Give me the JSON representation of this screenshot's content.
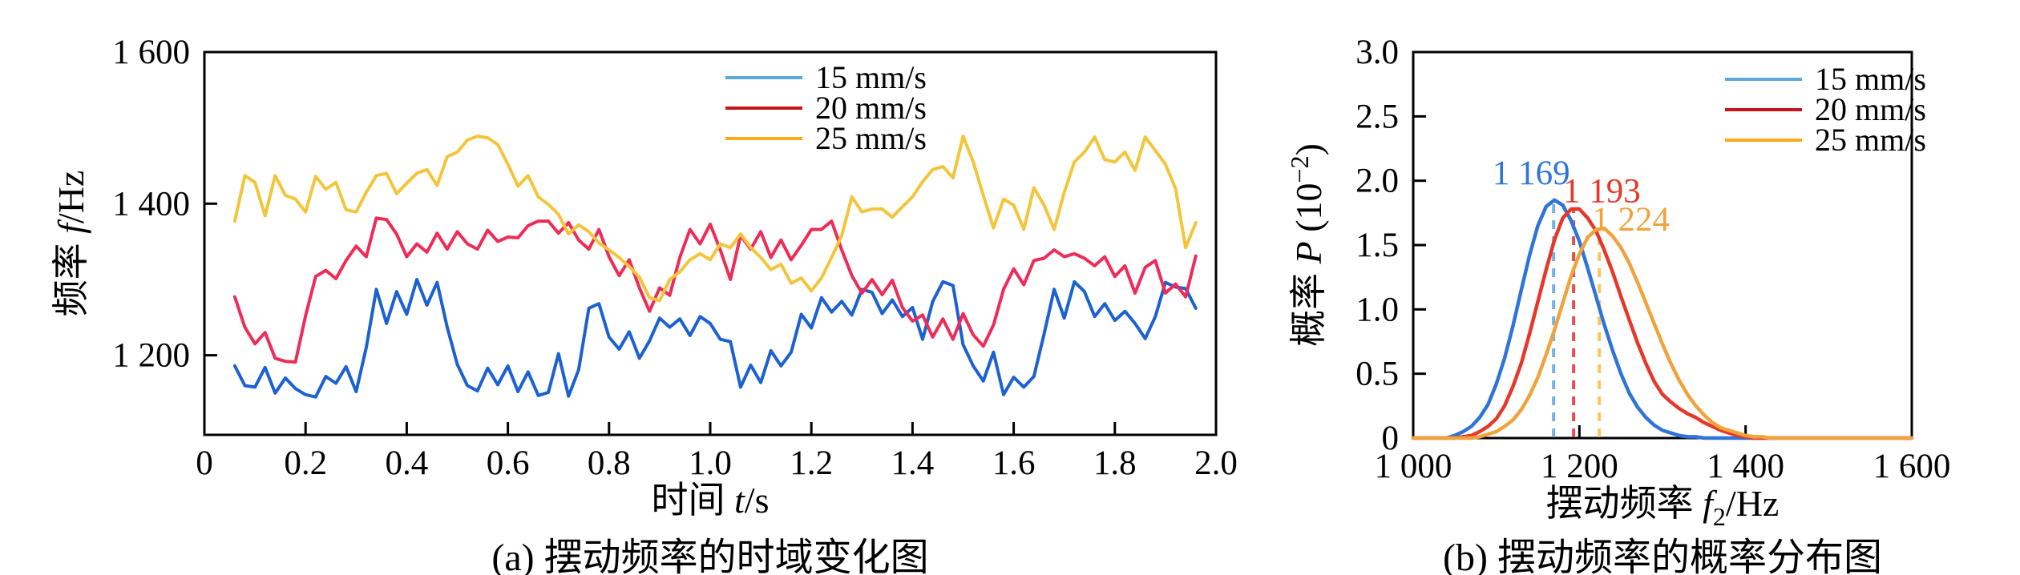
{
  "panels": {
    "a": {
      "caption": "(a) 摆动频率的时域变化图",
      "xlabel": {
        "pre": "时间 ",
        "var": "t",
        "post": "/s"
      },
      "ylabel": {
        "pre": "频率 ",
        "var": "f",
        "post": "/Hz"
      }
    },
    "b": {
      "caption": "(b) 摆动频率的概率分布图",
      "xlabel": {
        "pre": "摆动频率 ",
        "var": "f",
        "sub": "2",
        "post": "/Hz"
      },
      "ylabel": {
        "pre": "概率 ",
        "var": "P",
        "open": " (10",
        "sup": "−2",
        "close": ")"
      }
    }
  },
  "legend": {
    "items": [
      {
        "label": "15 mm/s",
        "swatch": "#5FA8DC"
      },
      {
        "label": "20 mm/s",
        "swatch": "#C3161C"
      },
      {
        "label": "25 mm/s",
        "swatch": "#FFA81E"
      }
    ]
  },
  "chart_data": [
    {
      "id": "a",
      "type": "line",
      "title": "(a) 摆动频率的时域变化图",
      "xlabel": "时间 t/s",
      "ylabel": "频率 f/Hz",
      "xlim": [
        0,
        2.0
      ],
      "ylim": [
        1095,
        1600
      ],
      "grid": false,
      "legend_position": "top-right-inside",
      "xticks": [
        {
          "v": 0,
          "label": "0"
        },
        {
          "v": 0.2,
          "label": "0.2"
        },
        {
          "v": 0.4,
          "label": "0.4"
        },
        {
          "v": 0.6,
          "label": "0.6"
        },
        {
          "v": 0.8,
          "label": "0.8"
        },
        {
          "v": 1.0,
          "label": "1.0"
        },
        {
          "v": 1.2,
          "label": "1.2"
        },
        {
          "v": 1.4,
          "label": "1.4"
        },
        {
          "v": 1.6,
          "label": "1.6"
        },
        {
          "v": 1.8,
          "label": "1.8"
        },
        {
          "v": 2.0,
          "label": "2.0"
        }
      ],
      "yticks": [
        {
          "v": 1200,
          "label": "1 200"
        },
        {
          "v": 1400,
          "label": "1 400"
        },
        {
          "v": 1600,
          "label": "1 600"
        }
      ],
      "t_start": 0.06,
      "t_step": 0.02,
      "series": [
        {
          "name": "15 mm/s",
          "color": "#1B61D1",
          "values": [
            1186,
            1160,
            1158,
            1184,
            1150,
            1170,
            1156,
            1148,
            1145,
            1172,
            1163,
            1185,
            1152,
            1210,
            1287,
            1242,
            1284,
            1254,
            1300,
            1266,
            1296,
            1237,
            1188,
            1160,
            1153,
            1183,
            1161,
            1186,
            1152,
            1178,
            1147,
            1151,
            1202,
            1146,
            1181,
            1262,
            1268,
            1224,
            1208,
            1231,
            1196,
            1219,
            1249,
            1237,
            1248,
            1226,
            1251,
            1242,
            1221,
            1218,
            1158,
            1187,
            1164,
            1206,
            1186,
            1204,
            1254,
            1236,
            1276,
            1257,
            1271,
            1253,
            1287,
            1283,
            1255,
            1273,
            1251,
            1263,
            1221,
            1271,
            1297,
            1292,
            1214,
            1186,
            1166,
            1204,
            1148,
            1171,
            1158,
            1172,
            1228,
            1287,
            1249,
            1297,
            1284,
            1251,
            1268,
            1246,
            1258,
            1242,
            1222,
            1251,
            1296,
            1290,
            1288,
            1262
          ]
        },
        {
          "name": "20 mm/s",
          "color": "#EF2B57",
          "values": [
            1277,
            1237,
            1215,
            1230,
            1196,
            1192,
            1191,
            1252,
            1304,
            1312,
            1301,
            1325,
            1344,
            1330,
            1381,
            1379,
            1360,
            1330,
            1347,
            1336,
            1361,
            1340,
            1363,
            1347,
            1340,
            1365,
            1350,
            1356,
            1355,
            1371,
            1377,
            1377,
            1361,
            1375,
            1352,
            1340,
            1366,
            1330,
            1305,
            1326,
            1289,
            1258,
            1289,
            1279,
            1329,
            1366,
            1347,
            1373,
            1339,
            1300,
            1358,
            1340,
            1363,
            1329,
            1352,
            1326,
            1345,
            1366,
            1366,
            1377,
            1339,
            1305,
            1282,
            1300,
            1280,
            1299,
            1263,
            1245,
            1253,
            1224,
            1248,
            1221,
            1255,
            1227,
            1212,
            1240,
            1287,
            1314,
            1293,
            1325,
            1328,
            1339,
            1330,
            1334,
            1328,
            1318,
            1330,
            1304,
            1318,
            1282,
            1316,
            1325,
            1282,
            1294,
            1277,
            1331
          ]
        },
        {
          "name": "25 mm/s",
          "color": "#F3C53A",
          "values": [
            1377,
            1437,
            1428,
            1384,
            1437,
            1411,
            1406,
            1389,
            1436,
            1419,
            1428,
            1392,
            1389,
            1415,
            1437,
            1440,
            1413,
            1427,
            1440,
            1445,
            1424,
            1462,
            1468,
            1484,
            1489,
            1487,
            1478,
            1452,
            1423,
            1437,
            1409,
            1399,
            1386,
            1360,
            1372,
            1363,
            1348,
            1339,
            1329,
            1317,
            1303,
            1276,
            1272,
            1300,
            1310,
            1326,
            1334,
            1326,
            1347,
            1342,
            1360,
            1342,
            1329,
            1313,
            1320,
            1295,
            1302,
            1285,
            1302,
            1329,
            1358,
            1409,
            1389,
            1393,
            1393,
            1382,
            1396,
            1409,
            1429,
            1445,
            1449,
            1434,
            1489,
            1455,
            1411,
            1368,
            1406,
            1398,
            1366,
            1421,
            1398,
            1366,
            1415,
            1455,
            1468,
            1488,
            1458,
            1455,
            1468,
            1444,
            1488,
            1470,
            1452,
            1420,
            1342,
            1375
          ]
        }
      ]
    },
    {
      "id": "b",
      "type": "line",
      "title": "(b) 摆动频率的概率分布图",
      "xlabel": "摆动频率 f₂/Hz",
      "ylabel": "概率 P (10⁻²)",
      "xlim": [
        1000,
        1600
      ],
      "ylim": [
        0,
        3.0
      ],
      "grid": false,
      "legend_position": "top-right-inside",
      "xticks": [
        {
          "v": 1000,
          "label": "1 000"
        },
        {
          "v": 1200,
          "label": "1 200"
        },
        {
          "v": 1400,
          "label": "1 400"
        },
        {
          "v": 1600,
          "label": "1 600"
        }
      ],
      "yticks": [
        {
          "v": 0,
          "label": "0"
        },
        {
          "v": 0.5,
          "label": "0.5"
        },
        {
          "v": 1.0,
          "label": "1.0"
        },
        {
          "v": 1.5,
          "label": "1.5"
        },
        {
          "v": 2.0,
          "label": "2.0"
        },
        {
          "v": 2.5,
          "label": "2.5"
        },
        {
          "v": 3.0,
          "label": "3.0"
        }
      ],
      "x_start": 1000,
      "x_step": 10,
      "series": [
        {
          "name": "15 mm/s",
          "color": "#2E74D9",
          "values": [
            0,
            0,
            0,
            0,
            0,
            0.02,
            0.05,
            0.09,
            0.16,
            0.26,
            0.42,
            0.62,
            0.87,
            1.15,
            1.42,
            1.65,
            1.8,
            1.85,
            1.81,
            1.69,
            1.53,
            1.32,
            1.1,
            0.88,
            0.68,
            0.5,
            0.35,
            0.24,
            0.16,
            0.1,
            0.06,
            0.04,
            0.02,
            0.01,
            0.01,
            0,
            0,
            0,
            0,
            0,
            0,
            0,
            0,
            0,
            0,
            0,
            0,
            0,
            0,
            0,
            0,
            0,
            0,
            0,
            0,
            0,
            0,
            0,
            0,
            0,
            0
          ]
        },
        {
          "name": "20 mm/s",
          "color": "#E6382A",
          "values": [
            0,
            0,
            0,
            0,
            0,
            0,
            0.01,
            0.02,
            0.05,
            0.09,
            0.15,
            0.25,
            0.4,
            0.58,
            0.81,
            1.06,
            1.31,
            1.54,
            1.71,
            1.78,
            1.78,
            1.71,
            1.61,
            1.46,
            1.29,
            1.1,
            0.92,
            0.74,
            0.58,
            0.44,
            0.34,
            0.28,
            0.23,
            0.19,
            0.16,
            0.12,
            0.09,
            0.06,
            0.04,
            0.02,
            0.01,
            0,
            0,
            0,
            0,
            0,
            0,
            0,
            0,
            0,
            0,
            0,
            0,
            0,
            0,
            0,
            0,
            0,
            0,
            0,
            0
          ]
        },
        {
          "name": "25 mm/s",
          "color": "#F0A33C",
          "values": [
            0,
            0,
            0,
            0,
            0,
            0,
            0,
            0,
            0.01,
            0.03,
            0.05,
            0.09,
            0.14,
            0.22,
            0.33,
            0.47,
            0.65,
            0.84,
            1.05,
            1.26,
            1.43,
            1.56,
            1.62,
            1.63,
            1.57,
            1.48,
            1.36,
            1.21,
            1.05,
            0.89,
            0.73,
            0.58,
            0.45,
            0.34,
            0.25,
            0.18,
            0.12,
            0.08,
            0.06,
            0.04,
            0.02,
            0.01,
            0.01,
            0,
            0,
            0,
            0,
            0,
            0,
            0,
            0,
            0,
            0,
            0,
            0,
            0,
            0,
            0,
            0,
            0,
            0
          ]
        }
      ],
      "annotations": [
        {
          "text": "1 169",
          "color": "#2E74D9",
          "label_x": 1142,
          "label_y": 2.06,
          "dash_x": 1169,
          "dash_top": 1.85,
          "dash_color": "#72B2E2"
        },
        {
          "text": "1 193",
          "color": "#E6382A",
          "label_x": 1227,
          "label_y": 1.92,
          "dash_x": 1193,
          "dash_top": 1.79,
          "dash_color": "#E2524A"
        },
        {
          "text": "1 224",
          "color": "#F0A33C",
          "label_x": 1262,
          "label_y": 1.7,
          "dash_x": 1224,
          "dash_top": 1.63,
          "dash_color": "#F7C55E"
        }
      ]
    }
  ]
}
